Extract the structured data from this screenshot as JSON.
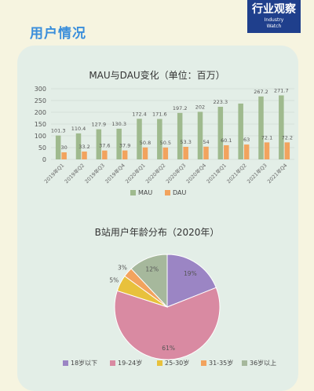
{
  "header": {
    "section_title": "用户情况",
    "brand_cn": "行业观察",
    "brand_en_1": "Industry",
    "brand_en_2": "Watch"
  },
  "colors": {
    "mau": "#9fba8e",
    "dau": "#f2a35e"
  },
  "chart_data": [
    {
      "type": "bar",
      "title": "MAU与DAU变化（单位：百万）",
      "categories": [
        "2019年Q1",
        "2019年Q2",
        "2019年Q3",
        "2019年Q4",
        "2020年Q1",
        "2020年Q2",
        "2020年Q3",
        "2020年Q4",
        "2021年Q1",
        "2021年Q2",
        "2021年Q3",
        "2021年Q4"
      ],
      "series": [
        {
          "name": "MAU",
          "values": [
            101.3,
            110.4,
            127.9,
            130.3,
            172.4,
            171.6,
            197.2,
            202,
            223.3,
            237,
            267.2,
            271.7
          ]
        },
        {
          "name": "DAU",
          "values": [
            30,
            33.2,
            37.6,
            37.9,
            50.8,
            50.5,
            53.3,
            54,
            60.1,
            63,
            72.1,
            72.2
          ]
        }
      ],
      "value_labels": {
        "MAU": [
          "101.3",
          "110.4",
          "127.9",
          "130.3",
          "172.4",
          "171.6",
          "197.2",
          "202",
          "223.3",
          "",
          "267.2",
          "271.7"
        ],
        "DAU": [
          "30",
          "33.2",
          "37.6",
          "37.9",
          "50.8",
          "50.5",
          "53.3",
          "54",
          "60.1",
          "63",
          "72.1",
          "72.2"
        ]
      },
      "yticks": [
        0,
        50,
        100,
        150,
        200,
        250,
        300
      ],
      "ylim": [
        0,
        300
      ],
      "grid": true,
      "legend": "bottom"
    },
    {
      "type": "pie",
      "title": "B站用户年龄分布（2020年）",
      "labels": [
        "18岁以下",
        "19-24岁",
        "25-30岁",
        "31-35岁",
        "36岁以上"
      ],
      "values": [
        19,
        61,
        5,
        3,
        12
      ],
      "value_labels": [
        "19%",
        "61%",
        "5%",
        "3%",
        "12%"
      ],
      "colors": [
        "#9b85c4",
        "#d98aa2",
        "#e8c13c",
        "#f2a35e",
        "#a6b89c"
      ],
      "legend": "bottom"
    }
  ]
}
